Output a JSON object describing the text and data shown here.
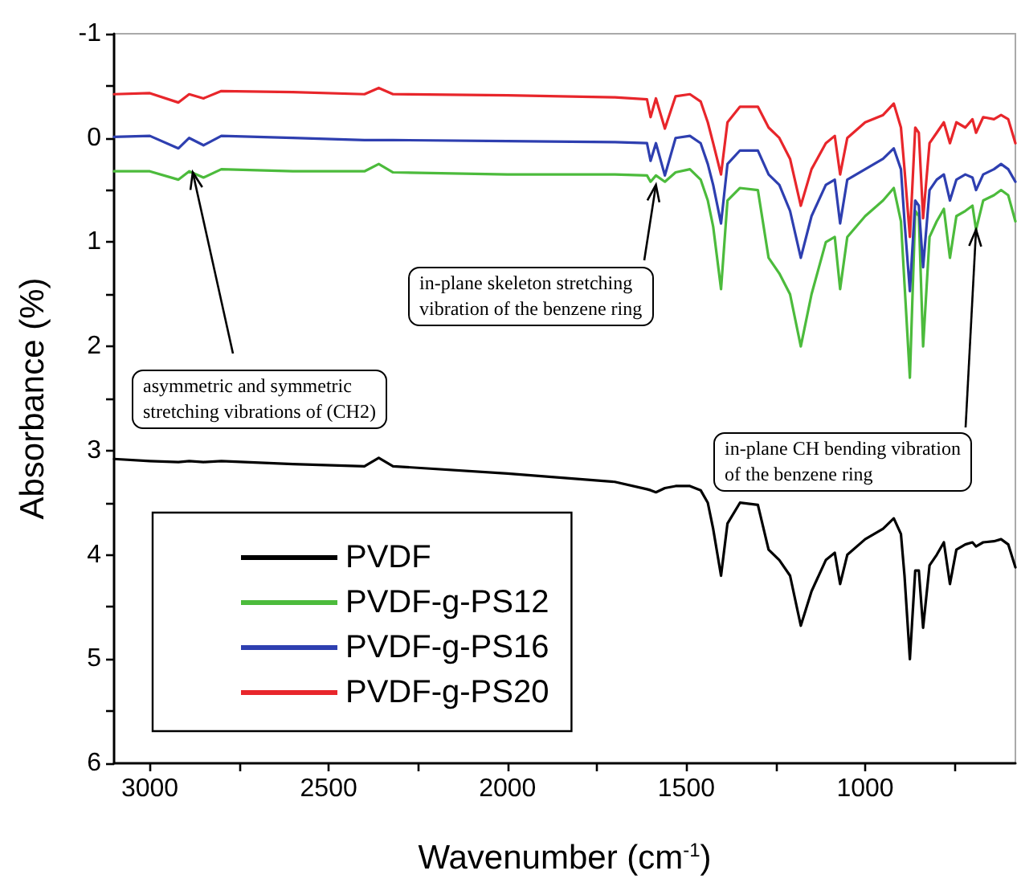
{
  "chart_data": {
    "type": "line",
    "xlabel": "Wavenumber (cm$^{-1}$)",
    "ylabel": "Absorbance (%)",
    "x": [
      3100,
      3000,
      2920,
      2890,
      2850,
      2800,
      2600,
      2400,
      2360,
      2320,
      2000,
      1700,
      1610,
      1600,
      1585,
      1560,
      1530,
      1490,
      1460,
      1440,
      1425,
      1403,
      1385,
      1350,
      1300,
      1270,
      1240,
      1210,
      1180,
      1150,
      1110,
      1085,
      1070,
      1050,
      1000,
      950,
      920,
      900,
      890,
      875,
      860,
      850,
      838,
      820,
      800,
      780,
      763,
      745,
      720,
      700,
      690,
      670,
      640,
      620,
      600,
      580
    ],
    "series": [
      {
        "name": "PVDF",
        "color": "#000000",
        "values": [
          3.08,
          3.1,
          3.11,
          3.1,
          3.11,
          3.1,
          3.13,
          3.15,
          3.07,
          3.15,
          3.22,
          3.3,
          3.37,
          3.38,
          3.4,
          3.36,
          3.34,
          3.34,
          3.38,
          3.5,
          3.75,
          4.2,
          3.7,
          3.5,
          3.52,
          3.95,
          4.05,
          4.2,
          4.68,
          4.35,
          4.05,
          3.98,
          4.28,
          4.0,
          3.85,
          3.75,
          3.65,
          3.8,
          4.2,
          5.0,
          4.15,
          4.15,
          4.7,
          4.1,
          4.0,
          3.88,
          4.28,
          3.95,
          3.9,
          3.88,
          3.92,
          3.88,
          3.87,
          3.85,
          3.9,
          4.12
        ]
      },
      {
        "name": "PVDF-g-PS12",
        "color": "#4cbb3c",
        "values": [
          0.32,
          0.32,
          0.4,
          0.32,
          0.38,
          0.3,
          0.32,
          0.32,
          0.25,
          0.33,
          0.35,
          0.35,
          0.36,
          0.42,
          0.36,
          0.42,
          0.33,
          0.3,
          0.4,
          0.6,
          0.85,
          1.45,
          0.6,
          0.48,
          0.5,
          1.15,
          1.3,
          1.5,
          2.0,
          1.5,
          1.0,
          0.95,
          1.45,
          0.95,
          0.75,
          0.6,
          0.48,
          0.8,
          1.4,
          2.3,
          0.7,
          0.75,
          2.0,
          0.95,
          0.8,
          0.68,
          1.15,
          0.75,
          0.7,
          0.65,
          0.88,
          0.6,
          0.55,
          0.5,
          0.55,
          0.8
        ]
      },
      {
        "name": "PVDF-g-PS16",
        "color": "#2e3fb0",
        "values": [
          -0.01,
          -0.02,
          0.1,
          0.0,
          0.07,
          -0.02,
          0.0,
          0.02,
          0.02,
          0.02,
          0.03,
          0.04,
          0.05,
          0.22,
          0.05,
          0.36,
          0.0,
          -0.02,
          0.05,
          0.25,
          0.45,
          0.82,
          0.25,
          0.12,
          0.12,
          0.35,
          0.45,
          0.7,
          1.15,
          0.75,
          0.45,
          0.4,
          0.82,
          0.4,
          0.3,
          0.2,
          0.1,
          0.3,
          0.8,
          1.47,
          0.6,
          0.65,
          1.24,
          0.5,
          0.4,
          0.35,
          0.6,
          0.4,
          0.35,
          0.38,
          0.5,
          0.35,
          0.3,
          0.25,
          0.3,
          0.42
        ]
      },
      {
        "name": "PVDF-g-PS20",
        "color": "#e8262b",
        "values": [
          -0.42,
          -0.43,
          -0.34,
          -0.42,
          -0.38,
          -0.45,
          -0.44,
          -0.42,
          -0.48,
          -0.42,
          -0.41,
          -0.39,
          -0.37,
          -0.2,
          -0.38,
          -0.09,
          -0.4,
          -0.42,
          -0.35,
          -0.15,
          0.05,
          0.35,
          -0.15,
          -0.3,
          -0.3,
          -0.1,
          0.0,
          0.2,
          0.65,
          0.3,
          0.05,
          -0.02,
          0.35,
          0.0,
          -0.15,
          -0.22,
          -0.33,
          -0.1,
          0.3,
          0.95,
          -0.1,
          -0.05,
          0.77,
          0.05,
          -0.05,
          -0.15,
          0.05,
          -0.15,
          -0.1,
          -0.18,
          -0.05,
          -0.2,
          -0.18,
          -0.22,
          -0.18,
          0.05
        ]
      }
    ],
    "xlim": [
      3100,
      580
    ],
    "xticks": [
      3000,
      {
        "value": 2750,
        "label": null
      },
      2500,
      {
        "value": 2250,
        "label": null
      },
      2000,
      {
        "value": 1750,
        "label": null
      },
      1500,
      {
        "value": 1250,
        "label": null
      },
      1000,
      {
        "value": 750,
        "label": null
      }
    ],
    "ylim": [
      6,
      -1
    ],
    "yticks": [
      -1,
      {
        "value": -0.5,
        "label": null
      },
      0,
      {
        "value": 0.5,
        "label": null
      },
      1,
      {
        "value": 1.5,
        "label": null
      },
      2,
      {
        "value": 2.5,
        "label": null
      },
      3,
      {
        "value": 3.5,
        "label": null
      },
      4,
      {
        "value": 4.5,
        "label": null
      },
      5,
      {
        "value": 5.5,
        "label": null
      },
      6
    ],
    "annotations": [
      {
        "text": "asymmetric and symmetric\nstretching vibrations of (CH2)",
        "x": 2880,
        "y": 0.33
      },
      {
        "text": "in-plane skeleton stretching\nvibration of the benzene ring",
        "x": 1585,
        "y": 0.45
      },
      {
        "text": "in-plane CH bending vibration\nof the benzene ring",
        "x": 690,
        "y": 0.88
      }
    ],
    "legend": "bottom left",
    "grid": false,
    "marker": "none",
    "line_style": "solid"
  }
}
